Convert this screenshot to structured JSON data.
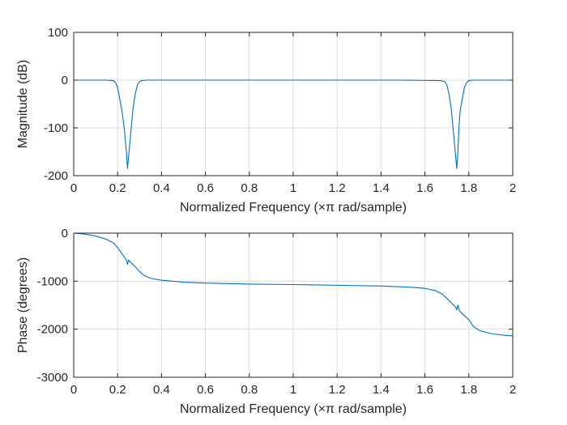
{
  "chart_data": [
    {
      "type": "line",
      "title": "",
      "xlabel": "Normalized Frequency  (×π rad/sample)",
      "ylabel": "Magnitude (dB)",
      "xlim": [
        0,
        2
      ],
      "ylim": [
        -200,
        100
      ],
      "xticks": [
        0,
        0.2,
        0.4,
        0.6,
        0.8,
        1,
        1.2,
        1.4,
        1.6,
        1.8,
        2
      ],
      "xtick_labels": [
        "0",
        "0.2",
        "0.4",
        "0.6",
        "0.8",
        "1",
        "1.2",
        "1.4",
        "1.6",
        "1.8",
        "2"
      ],
      "yticks": [
        -200,
        -100,
        0,
        100
      ],
      "ytick_labels": [
        "-200",
        "-100",
        "0",
        "100"
      ],
      "grid": true,
      "series": [
        {
          "color": "#0072bd",
          "x": [
            0,
            0.15,
            0.18,
            0.19,
            0.2,
            0.21,
            0.22,
            0.23,
            0.24,
            0.245,
            0.25,
            0.26,
            0.27,
            0.28,
            0.29,
            0.3,
            0.31,
            0.33,
            0.5,
            1.0,
            1.5,
            1.67,
            1.69,
            1.7,
            1.71,
            1.72,
            1.73,
            1.74,
            1.745,
            1.75,
            1.755,
            1.76,
            1.77,
            1.78,
            1.79,
            1.8,
            1.82,
            1.85,
            2.0
          ],
          "y": [
            0,
            0,
            -1,
            -5,
            -15,
            -40,
            -65,
            -100,
            -150,
            -185,
            -160,
            -110,
            -60,
            -30,
            -10,
            -3,
            -1,
            0,
            0,
            0,
            0,
            -1,
            -3,
            -10,
            -30,
            -60,
            -110,
            -160,
            -185,
            -150,
            -100,
            -65,
            -40,
            -15,
            -5,
            -1,
            0,
            0,
            0
          ]
        }
      ]
    },
    {
      "type": "line",
      "title": "",
      "xlabel": "Normalized Frequency  (×π rad/sample)",
      "ylabel": "Phase (degrees)",
      "xlim": [
        0,
        2
      ],
      "ylim": [
        -3000,
        0
      ],
      "xticks": [
        0,
        0.2,
        0.4,
        0.6,
        0.8,
        1,
        1.2,
        1.4,
        1.6,
        1.8,
        2
      ],
      "xtick_labels": [
        "0",
        "0.2",
        "0.4",
        "0.6",
        "0.8",
        "1",
        "1.2",
        "1.4",
        "1.6",
        "1.8",
        "2"
      ],
      "yticks": [
        -3000,
        -2000,
        -1000,
        0
      ],
      "ytick_labels": [
        "-3000",
        "-2000",
        "-1000",
        "0"
      ],
      "grid": true,
      "series": [
        {
          "color": "#0072bd",
          "x": [
            0,
            0.05,
            0.1,
            0.15,
            0.18,
            0.2,
            0.22,
            0.24,
            0.245,
            0.25,
            0.255,
            0.26,
            0.28,
            0.3,
            0.32,
            0.35,
            0.4,
            0.5,
            0.6,
            0.8,
            1.0,
            1.2,
            1.4,
            1.55,
            1.6,
            1.65,
            1.68,
            1.7,
            1.72,
            1.74,
            1.745,
            1.75,
            1.755,
            1.76,
            1.78,
            1.8,
            1.82,
            1.85,
            1.9,
            1.95,
            2.0
          ],
          "y": [
            0,
            -20,
            -60,
            -130,
            -200,
            -300,
            -430,
            -560,
            -650,
            -560,
            -590,
            -610,
            -700,
            -800,
            -880,
            -940,
            -980,
            -1020,
            -1040,
            -1060,
            -1070,
            -1085,
            -1100,
            -1130,
            -1150,
            -1200,
            -1270,
            -1360,
            -1450,
            -1540,
            -1600,
            -1500,
            -1580,
            -1630,
            -1720,
            -1800,
            -1940,
            -2030,
            -2090,
            -2120,
            -2140
          ]
        }
      ]
    }
  ]
}
